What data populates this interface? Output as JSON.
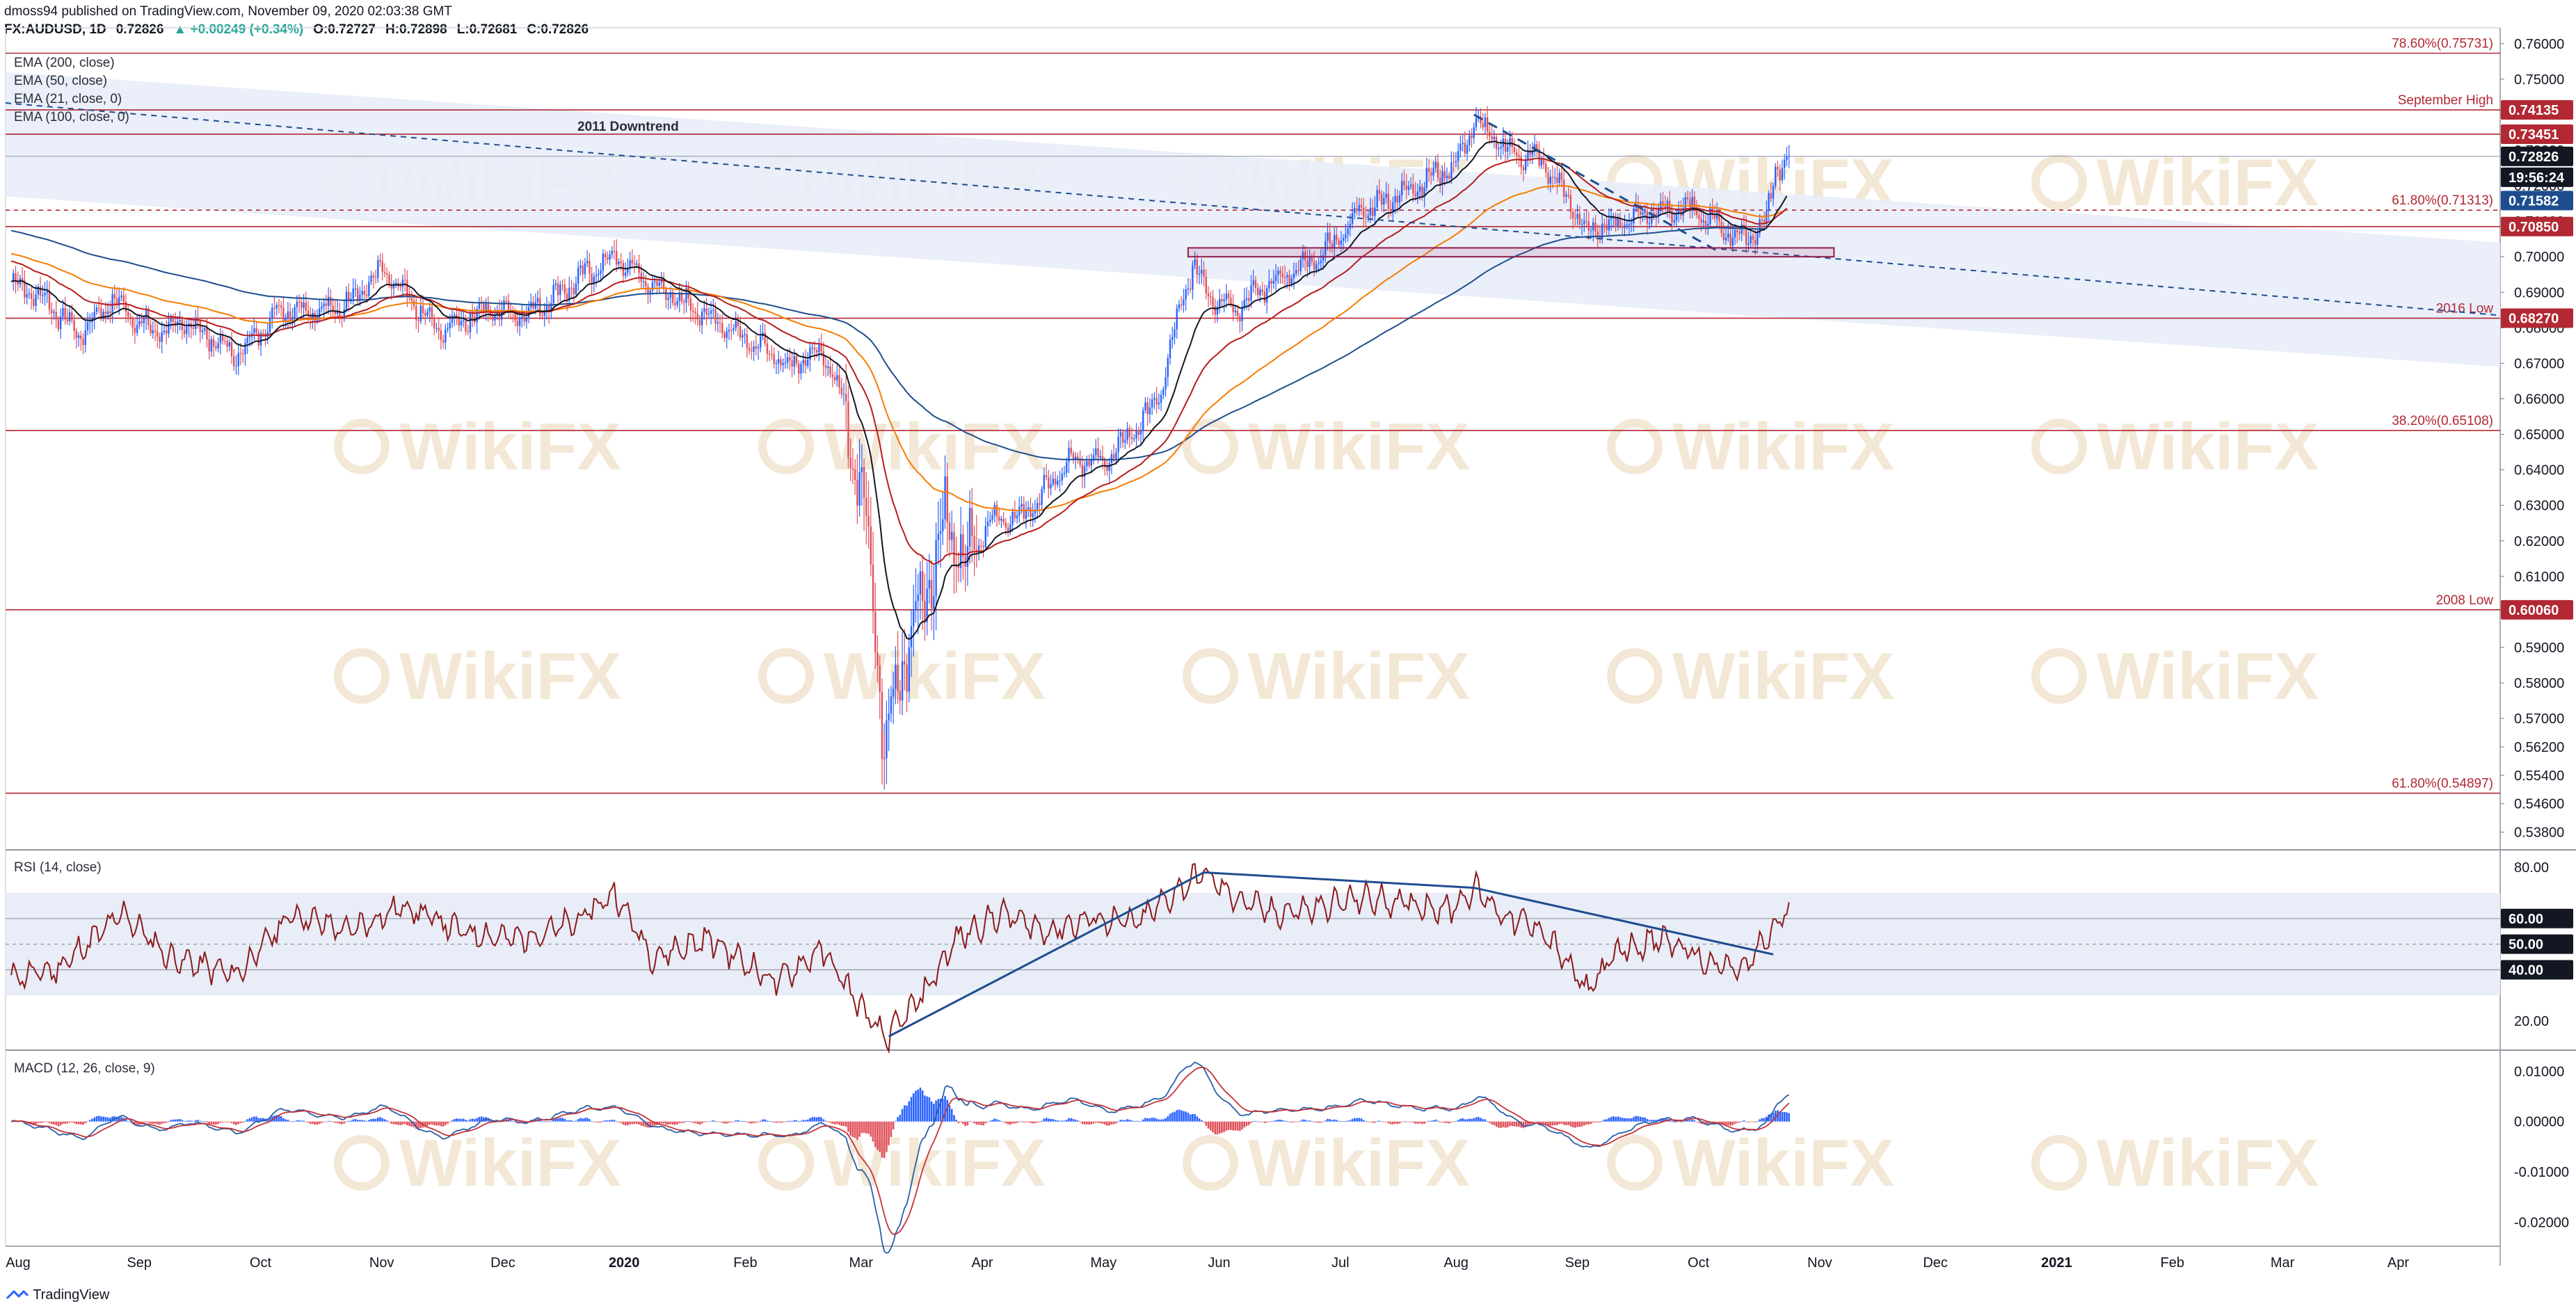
{
  "header": {
    "line1": "dmoss94 published on TradingView.com, November 09, 2020 02:03:38 GMT",
    "symbol": "FX:AUDUSD, 1D",
    "last": "0.72826",
    "change": "▲ +0.00249 (+0.34%)",
    "open": "O:0.72727",
    "high": "H:0.72898",
    "low": "L:0.72681",
    "close": "C:0.72826"
  },
  "legend": [
    "EMA (200, close)",
    "EMA (50, close)",
    "EMA (21, close, 0)",
    "EMA (100, close, 0)"
  ],
  "watermark_text": "WikiFX",
  "footer": {
    "brand": "TradingView"
  },
  "colors": {
    "bull": "#2962ff",
    "bear": "#e0505a",
    "ema21": "#131722",
    "ema50": "#b71c1c",
    "ema100": "#f57c00",
    "ema200": "#1e4d8f",
    "band": "#e8edf8",
    "level": "#b22833",
    "rsi": "#8b1a1a",
    "macd_line": "#2a5fa8",
    "signal_line": "#c2343a"
  },
  "chart_data": [
    {
      "type": "candlestick",
      "name": "FX:AUDUSD, 1D",
      "x_labels": [
        "Aug",
        "Sep",
        "Oct",
        "Nov",
        "Dec",
        "2020",
        "Feb",
        "Mar",
        "Apr",
        "May",
        "Jun",
        "Jul",
        "Aug",
        "Sep",
        "Oct",
        "Nov",
        "Dec",
        "2021",
        "Feb",
        "Mar",
        "Apr"
      ],
      "y_ticks": [
        "0.76000",
        "0.75000",
        "0.74000",
        "0.73000",
        "0.72000",
        "0.71000",
        "0.70000",
        "0.69000",
        "0.68000",
        "0.67000",
        "0.66000",
        "0.65000",
        "0.64000",
        "0.63000",
        "0.62000",
        "0.61000",
        "0.60000",
        "0.59000",
        "0.58000",
        "0.57000",
        "0.56200",
        "0.55400",
        "0.54600",
        "0.53800"
      ],
      "ylim": [
        0.5338,
        0.7625
      ],
      "price_keypoints": [
        [
          0,
          0.693
        ],
        [
          15,
          0.688
        ],
        [
          30,
          0.678
        ],
        [
          45,
          0.688
        ],
        [
          62,
          0.679
        ],
        [
          80,
          0.681
        ],
        [
          100,
          0.672
        ],
        [
          120,
          0.6855
        ],
        [
          145,
          0.685
        ],
        [
          165,
          0.696
        ],
        [
          190,
          0.679
        ],
        [
          210,
          0.685
        ],
        [
          230,
          0.684
        ],
        [
          255,
          0.695
        ],
        [
          268,
          0.7
        ],
        [
          285,
          0.692
        ],
        [
          305,
          0.685
        ],
        [
          330,
          0.676
        ],
        [
          345,
          0.669
        ],
        [
          360,
          0.674
        ],
        [
          370,
          0.66
        ],
        [
          378,
          0.633
        ],
        [
          385,
          0.59
        ],
        [
          388,
          0.56
        ],
        [
          395,
          0.584
        ],
        [
          405,
          0.605
        ],
        [
          415,
          0.625
        ],
        [
          425,
          0.613
        ],
        [
          435,
          0.626
        ],
        [
          450,
          0.627
        ],
        [
          470,
          0.643
        ],
        [
          485,
          0.642
        ],
        [
          495,
          0.648
        ],
        [
          510,
          0.66
        ],
        [
          520,
          0.687
        ],
        [
          525,
          0.697
        ],
        [
          535,
          0.688
        ],
        [
          545,
          0.686
        ],
        [
          560,
          0.693
        ],
        [
          575,
          0.697
        ],
        [
          585,
          0.702
        ],
        [
          600,
          0.713
        ],
        [
          615,
          0.717
        ],
        [
          630,
          0.722
        ],
        [
          642,
          0.726
        ],
        [
          650,
          0.738
        ],
        [
          665,
          0.73
        ],
        [
          680,
          0.727
        ],
        [
          690,
          0.718
        ],
        [
          700,
          0.707
        ],
        [
          715,
          0.71
        ],
        [
          730,
          0.713
        ],
        [
          745,
          0.714
        ],
        [
          760,
          0.708
        ],
        [
          770,
          0.705
        ],
        [
          780,
          0.71
        ],
        [
          784,
          0.725
        ],
        [
          790,
          0.7283
        ]
      ],
      "horizontal_levels": [
        {
          "price": 0.75731,
          "label": "78.60%(0.75731)"
        },
        {
          "price": 0.74135,
          "label": "September High",
          "tag": "0.74135"
        },
        {
          "price": 0.73451,
          "tag": "0.73451"
        },
        {
          "price": 0.71313,
          "label": "61.80%(0.71313)",
          "dashed": true
        },
        {
          "price": 0.7085,
          "tag": "0.70850"
        },
        {
          "price": 0.6827,
          "label": "2016 Low",
          "tag": "0.68270"
        },
        {
          "price": 0.65108,
          "label": "38.20%(0.65108)"
        },
        {
          "price": 0.6006,
          "label": "2008 Low",
          "tag": "0.60060"
        },
        {
          "price": 0.54897,
          "label": "61.80%(0.54897)"
        }
      ],
      "price_tags": [
        {
          "price": 0.72826,
          "text": "0.72826",
          "color": "#131722"
        },
        {
          "price": 0.72826,
          "text": "19:56:24",
          "color": "#131722",
          "offset_rows": 1
        },
        {
          "price": 0.71582,
          "text": "0.71582",
          "color": "#1e4d8f"
        }
      ],
      "annotations": [
        {
          "text": "2011 Downtrend"
        }
      ]
    },
    {
      "type": "line",
      "name": "RSI (14, close)",
      "y_ticks": [
        "80.00",
        "20.00"
      ],
      "levels": [
        {
          "value": 60,
          "tag": "60.00"
        },
        {
          "value": 50,
          "tag": "50.00"
        },
        {
          "value": 40,
          "tag": "40.00"
        }
      ],
      "ylim": [
        10,
        86
      ],
      "keypoints": [
        [
          0,
          37
        ],
        [
          20,
          40
        ],
        [
          50,
          62
        ],
        [
          70,
          45
        ],
        [
          100,
          38
        ],
        [
          125,
          62
        ],
        [
          150,
          55
        ],
        [
          175,
          65
        ],
        [
          200,
          55
        ],
        [
          225,
          52
        ],
        [
          250,
          58
        ],
        [
          268,
          70
        ],
        [
          285,
          45
        ],
        [
          310,
          52
        ],
        [
          340,
          35
        ],
        [
          360,
          48
        ],
        [
          385,
          16
        ],
        [
          390,
          14
        ],
        [
          405,
          30
        ],
        [
          420,
          52
        ],
        [
          440,
          62
        ],
        [
          460,
          55
        ],
        [
          480,
          60
        ],
        [
          500,
          58
        ],
        [
          520,
          72
        ],
        [
          530,
          78
        ],
        [
          540,
          70
        ],
        [
          560,
          62
        ],
        [
          580,
          64
        ],
        [
          600,
          68
        ],
        [
          620,
          66
        ],
        [
          640,
          64
        ],
        [
          650,
          72
        ],
        [
          665,
          60
        ],
        [
          680,
          56
        ],
        [
          695,
          38
        ],
        [
          700,
          32
        ],
        [
          715,
          48
        ],
        [
          735,
          52
        ],
        [
          755,
          42
        ],
        [
          770,
          40
        ],
        [
          780,
          52
        ],
        [
          790,
          64
        ]
      ],
      "trendlines": [
        {
          "from": [
            390,
            14
          ],
          "to": [
            530,
            78
          ]
        },
        {
          "from": [
            530,
            78
          ],
          "to": [
            650,
            72
          ]
        },
        {
          "from": [
            650,
            72
          ],
          "to": [
            783,
            46
          ]
        }
      ]
    },
    {
      "type": "bar+line",
      "name": "MACD (12, 26, close, 9)",
      "y_ticks": [
        "0.01000",
        "0.00000",
        "-0.01000",
        "-0.02000"
      ],
      "ylim": [
        -0.0245,
        0.0135
      ]
    }
  ]
}
